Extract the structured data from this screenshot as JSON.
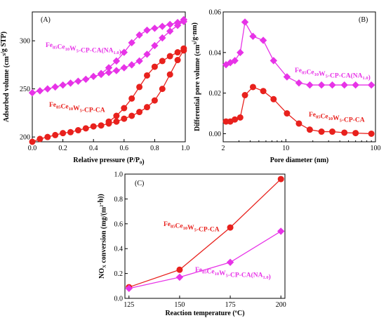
{
  "colors": {
    "red": "#e8211d",
    "magenta": "#e733e7"
  },
  "chart_data": [
    {
      "type": "line",
      "panel": "(A)",
      "xlabel": "Relative pressure (P/P",
      "xlabel_sub": "0",
      "xlabel_end": ")",
      "ylabel": "Adsorbed volume (cm",
      "ylabel_sup": "3",
      "ylabel_end": "/g STP)",
      "xlim": [
        0,
        1.0
      ],
      "ylim": [
        195,
        330
      ],
      "xticks": [
        0.0,
        0.2,
        0.4,
        0.6,
        0.8,
        1.0
      ],
      "xtick_labels": [
        "0.0",
        "0.2",
        "0.4",
        "0.6",
        "0.8",
        "1.0"
      ],
      "yticks": [
        200,
        250,
        300
      ],
      "ytick_labels": [
        "200",
        "250",
        "300"
      ],
      "series": [
        {
          "name": "Fe85Ce10W5-CP-CA(NA1.0)",
          "label_parts": [
            [
              "Fe",
              ""
            ],
            [
              "85",
              "sub"
            ],
            [
              "Ce",
              ""
            ],
            [
              "10",
              "sub"
            ],
            [
              "W",
              ""
            ],
            [
              "5",
              "sub"
            ],
            [
              "-CP-CA(NA",
              ""
            ],
            [
              "1.0",
              "sub"
            ],
            [
              ")",
              ""
            ]
          ],
          "color": "#e733e7",
          "marker": "diamond",
          "adsorption": {
            "x": [
              0.0,
              0.05,
              0.1,
              0.15,
              0.2,
              0.25,
              0.3,
              0.35,
              0.4,
              0.45,
              0.5,
              0.55,
              0.6,
              0.65,
              0.7,
              0.75,
              0.8,
              0.85,
              0.9,
              0.95,
              0.99
            ],
            "y": [
              246,
              248,
              250,
              252,
              254,
              256,
              258,
              260,
              263,
              265,
              267,
              269,
              272,
              275,
              279,
              286,
              295,
              303,
              310,
              316,
              320
            ]
          },
          "desorption": {
            "x": [
              0.99,
              0.95,
              0.9,
              0.85,
              0.8,
              0.75,
              0.7,
              0.65,
              0.6,
              0.55,
              0.5,
              0.45
            ],
            "y": [
              322,
              319,
              317,
              315,
              313,
              311,
              306,
              298,
              288,
              279,
              272,
              266
            ]
          }
        },
        {
          "name": "Fe85Ce10W5-CP-CA",
          "label_parts": [
            [
              "Fe",
              ""
            ],
            [
              "85",
              "sub"
            ],
            [
              "Ce",
              ""
            ],
            [
              "10",
              "sub"
            ],
            [
              "W",
              ""
            ],
            [
              "5",
              "sub"
            ],
            [
              "-CP-CA",
              ""
            ]
          ],
          "color": "#e8211d",
          "marker": "circle",
          "adsorption": {
            "x": [
              0.0,
              0.05,
              0.1,
              0.15,
              0.2,
              0.25,
              0.3,
              0.35,
              0.4,
              0.45,
              0.5,
              0.55,
              0.6,
              0.65,
              0.7,
              0.75,
              0.8,
              0.85,
              0.9,
              0.95,
              0.99
            ],
            "y": [
              195,
              198,
              200,
              202,
              204,
              205,
              207,
              209,
              211,
              212,
              214,
              216,
              219,
              222,
              226,
              231,
              238,
              250,
              265,
              280,
              290
            ]
          },
          "desorption": {
            "x": [
              0.99,
              0.95,
              0.9,
              0.85,
              0.8,
              0.75,
              0.7,
              0.65,
              0.6,
              0.55,
              0.5
            ],
            "y": [
              292,
              288,
              284,
              279,
              273,
              264,
              252,
              240,
              230,
              222,
              216
            ]
          }
        }
      ]
    },
    {
      "type": "line",
      "panel": "(B)",
      "xlabel": "Pore diameter (nm)",
      "ylabel": "Differential pore volume (cm",
      "ylabel_sup": "3",
      "ylabel_end": "/g·nm)",
      "xscale": "log",
      "xlim": [
        2,
        100
      ],
      "ylim": [
        -0.004,
        0.06
      ],
      "xticks": [
        2,
        10,
        100
      ],
      "xtick_labels": [
        "2",
        "10",
        "100"
      ],
      "yticks": [
        0.0,
        0.02,
        0.04,
        0.06
      ],
      "ytick_labels": [
        "0.00",
        "0.02",
        "0.04",
        "0.06"
      ],
      "series": [
        {
          "name": "Fe85Ce10W5-CP-CA(NA1.0)",
          "label_parts": [
            [
              "Fe",
              ""
            ],
            [
              "85",
              "sub"
            ],
            [
              "Ce",
              ""
            ],
            [
              "10",
              "sub"
            ],
            [
              "W",
              ""
            ],
            [
              "5",
              "sub"
            ],
            [
              "-CP-CA(NA",
              ""
            ],
            [
              "1.0",
              "sub"
            ],
            [
              ")",
              ""
            ]
          ],
          "color": "#e733e7",
          "marker": "diamond",
          "x": [
            2.15,
            2.4,
            2.7,
            3.1,
            3.5,
            4.3,
            5.6,
            7.3,
            10.3,
            14,
            18.5,
            25,
            33,
            45,
            60,
            90
          ],
          "y": [
            0.034,
            0.035,
            0.036,
            0.04,
            0.055,
            0.048,
            0.046,
            0.036,
            0.028,
            0.025,
            0.024,
            0.024,
            0.024,
            0.024,
            0.024,
            0.024
          ]
        },
        {
          "name": "Fe85Ce10W5-CP-CA",
          "label_parts": [
            [
              "Fe",
              ""
            ],
            [
              "85",
              "sub"
            ],
            [
              "Ce",
              ""
            ],
            [
              "10",
              "sub"
            ],
            [
              "W",
              ""
            ],
            [
              "5",
              "sub"
            ],
            [
              "-CP-CA",
              ""
            ]
          ],
          "color": "#e8211d",
          "marker": "circle",
          "x": [
            2.15,
            2.4,
            2.7,
            3.1,
            3.5,
            4.3,
            5.6,
            7.3,
            10.3,
            14,
            18.5,
            25,
            33,
            45,
            60,
            90
          ],
          "y": [
            0.006,
            0.006,
            0.007,
            0.008,
            0.019,
            0.023,
            0.021,
            0.017,
            0.01,
            0.005,
            0.002,
            0.001,
            0.001,
            0.0005,
            0.0003,
            0.0
          ]
        }
      ]
    },
    {
      "type": "line",
      "panel": "(C)",
      "xlabel": "Reaction temperature (ºC)",
      "ylabel": "NO",
      "ylabel_sub": "X",
      "ylabel_mid": " conversion (mg/(m",
      "ylabel_sup": "2",
      "ylabel_end": "·h))",
      "xlim": [
        123,
        202
      ],
      "ylim": [
        0,
        1.0
      ],
      "xticks": [
        125,
        150,
        175,
        200
      ],
      "xtick_labels": [
        "125",
        "150",
        "175",
        "200"
      ],
      "yticks": [
        0.0,
        0.2,
        0.4,
        0.6,
        0.8,
        1.0
      ],
      "ytick_labels": [
        "0.0",
        "0.2",
        "0.4",
        "0.6",
        "0.8",
        "1.0"
      ],
      "series": [
        {
          "name": "Fe85Ce10W5-CP-CA",
          "label_parts": [
            [
              "Fe",
              ""
            ],
            [
              "85",
              "sub"
            ],
            [
              "Ce",
              ""
            ],
            [
              "10",
              "sub"
            ],
            [
              "W",
              ""
            ],
            [
              "5",
              "sub"
            ],
            [
              "-CP-CA",
              ""
            ]
          ],
          "color": "#e8211d",
          "marker": "circle",
          "x": [
            125,
            150,
            175,
            200
          ],
          "y": [
            0.09,
            0.23,
            0.57,
            0.96
          ]
        },
        {
          "name": "Fe85Ce10W5-CP-CA(NA1.0)",
          "label_parts": [
            [
              "Fe",
              ""
            ],
            [
              "85",
              "sub"
            ],
            [
              "Ce",
              ""
            ],
            [
              "10",
              "sub"
            ],
            [
              "W",
              ""
            ],
            [
              "5",
              "sub"
            ],
            [
              "-CP-CA(NA",
              ""
            ],
            [
              "1.0",
              "sub"
            ],
            [
              ")",
              ""
            ]
          ],
          "color": "#e733e7",
          "marker": "diamond",
          "x": [
            125,
            150,
            175,
            200
          ],
          "y": [
            0.08,
            0.17,
            0.29,
            0.54
          ]
        }
      ]
    }
  ]
}
